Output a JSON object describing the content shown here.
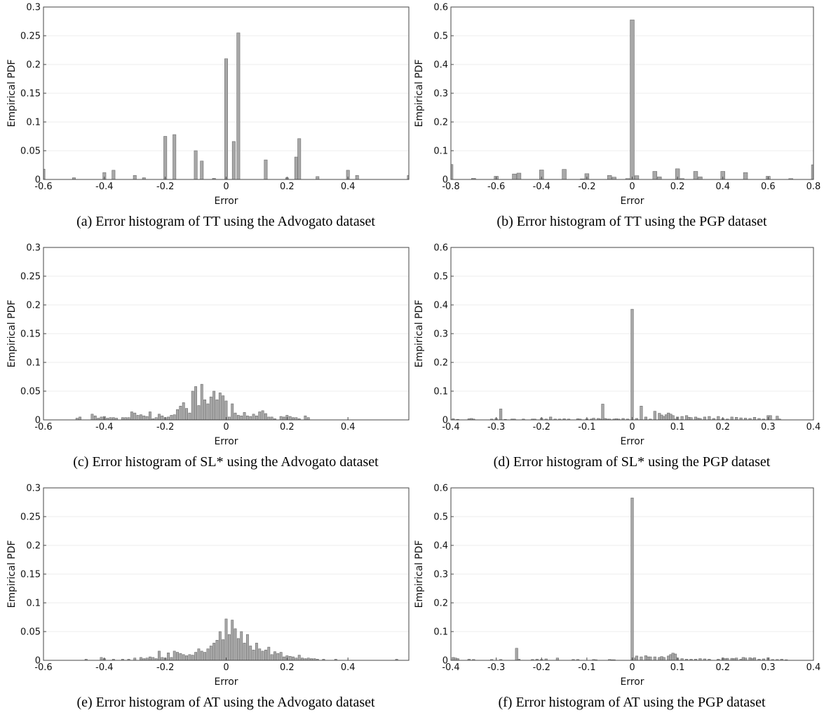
{
  "chart_data": [
    {
      "type": "bar",
      "caption": "(a) Error histogram of TT using the Advogato dataset",
      "xlabel": "Error",
      "ylabel": "Empirical PDF",
      "xlim": [
        -0.6,
        0.6
      ],
      "ylim": [
        0,
        0.3
      ],
      "xticks": [
        -0.6,
        -0.4,
        -0.2,
        0,
        0.2,
        0.4
      ],
      "yticks": [
        0,
        0.05,
        0.1,
        0.15,
        0.2,
        0.25,
        0.3
      ],
      "xtick_labels": [
        "-0.6",
        "-0.4",
        "-0.2",
        "0",
        "0.2",
        "0.4"
      ],
      "ytick_labels": [
        "0",
        "0.05",
        "0.1",
        "0.15",
        "0.2",
        "0.25",
        "0.3"
      ],
      "grid": true,
      "bar_width": 0.01,
      "x": [
        -0.6,
        -0.5,
        -0.4,
        -0.37,
        -0.3,
        -0.27,
        -0.2,
        -0.17,
        -0.1,
        -0.08,
        -0.04,
        0,
        0.025,
        0.04,
        0.13,
        0.2,
        0.23,
        0.24,
        0.3,
        0.4,
        0.43,
        0.6
      ],
      "values": [
        0.018,
        0.003,
        0.012,
        0.016,
        0.007,
        0.003,
        0.075,
        0.078,
        0.05,
        0.032,
        0.002,
        0.21,
        0.066,
        0.255,
        0.034,
        0.003,
        0.039,
        0.071,
        0.005,
        0.016,
        0.007,
        0.007
      ]
    },
    {
      "type": "bar",
      "caption": "(b) Error histogram of TT using the PGP dataset",
      "xlabel": "Error",
      "ylabel": "Empirical PDF",
      "xlim": [
        -0.8,
        0.8
      ],
      "ylim": [
        0,
        0.6
      ],
      "xticks": [
        -0.8,
        -0.6,
        -0.4,
        -0.2,
        0,
        0.2,
        0.4,
        0.6,
        0.8
      ],
      "yticks": [
        0,
        0.1,
        0.2,
        0.3,
        0.4,
        0.5,
        0.6
      ],
      "xtick_labels": [
        "-0.8",
        "-0.6",
        "-0.4",
        "-0.2",
        "0",
        "0.2",
        "0.4",
        "0.6",
        "0.8"
      ],
      "ytick_labels": [
        "0",
        "0.1",
        "0.2",
        "0.3",
        "0.4",
        "0.5",
        "0.6"
      ],
      "grid": true,
      "bar_width": 0.018,
      "x": [
        -0.8,
        -0.7,
        -0.6,
        -0.52,
        -0.5,
        -0.4,
        -0.3,
        -0.22,
        -0.2,
        -0.1,
        -0.08,
        -0.02,
        0,
        0.02,
        0.1,
        0.12,
        0.2,
        0.22,
        0.28,
        0.3,
        0.4,
        0.5,
        0.6,
        0.7,
        0.8
      ],
      "values": [
        0.052,
        0.004,
        0.011,
        0.019,
        0.022,
        0.033,
        0.035,
        0.002,
        0.02,
        0.014,
        0.008,
        0.003,
        0.555,
        0.013,
        0.028,
        0.009,
        0.037,
        0.003,
        0.028,
        0.009,
        0.028,
        0.024,
        0.011,
        0.003,
        0.051
      ]
    },
    {
      "type": "bar",
      "caption": "(c) Error histogram of SL* using the Advogato dataset",
      "xlabel": "Error",
      "ylabel": "Empirical PDF",
      "xlim": [
        -0.6,
        0.6
      ],
      "ylim": [
        0,
        0.3
      ],
      "xticks": [
        -0.6,
        -0.4,
        -0.2,
        0,
        0.2,
        0.4
      ],
      "yticks": [
        0,
        0.05,
        0.1,
        0.15,
        0.2,
        0.25,
        0.3
      ],
      "xtick_labels": [
        "-0.6",
        "-0.4",
        "-0.2",
        "0",
        "0.2",
        "0.4"
      ],
      "ytick_labels": [
        "0",
        "0.05",
        "0.1",
        "0.15",
        "0.2",
        "0.25",
        "0.3"
      ],
      "grid": true,
      "bar_width": 0.0075,
      "x": [
        -0.49,
        -0.48,
        -0.44,
        -0.43,
        -0.42,
        -0.41,
        -0.4,
        -0.39,
        -0.38,
        -0.37,
        -0.36,
        -0.34,
        -0.33,
        -0.32,
        -0.31,
        -0.3,
        -0.29,
        -0.28,
        -0.27,
        -0.26,
        -0.25,
        -0.24,
        -0.23,
        -0.22,
        -0.21,
        -0.2,
        -0.19,
        -0.18,
        -0.17,
        -0.16,
        -0.15,
        -0.14,
        -0.13,
        -0.12,
        -0.11,
        -0.1,
        -0.09,
        -0.08,
        -0.07,
        -0.06,
        -0.05,
        -0.04,
        -0.03,
        -0.02,
        -0.01,
        0.0,
        0.01,
        0.02,
        0.03,
        0.04,
        0.05,
        0.06,
        0.07,
        0.08,
        0.09,
        0.1,
        0.11,
        0.12,
        0.13,
        0.14,
        0.15,
        0.16,
        0.18,
        0.19,
        0.2,
        0.21,
        0.22,
        0.23,
        0.24,
        0.26,
        0.27
      ],
      "values": [
        0.003,
        0.005,
        0.01,
        0.007,
        0.003,
        0.005,
        0.006,
        0.003,
        0.004,
        0.004,
        0.003,
        0.004,
        0.004,
        0.004,
        0.014,
        0.012,
        0.008,
        0.009,
        0.007,
        0.006,
        0.014,
        0.002,
        0.004,
        0.01,
        0.007,
        0.004,
        0.005,
        0.008,
        0.009,
        0.018,
        0.024,
        0.03,
        0.02,
        0.012,
        0.05,
        0.058,
        0.025,
        0.062,
        0.035,
        0.028,
        0.04,
        0.05,
        0.035,
        0.047,
        0.042,
        0.033,
        0.005,
        0.028,
        0.012,
        0.008,
        0.007,
        0.013,
        0.007,
        0.006,
        0.01,
        0.007,
        0.014,
        0.016,
        0.011,
        0.005,
        0.005,
        0.002,
        0.006,
        0.005,
        0.008,
        0.006,
        0.004,
        0.004,
        0.002,
        0.007,
        0.004
      ]
    },
    {
      "type": "bar",
      "caption": "(d) Error histogram of SL* using the PGP dataset",
      "xlabel": "Error",
      "ylabel": "Empirical PDF",
      "xlim": [
        -0.4,
        0.4
      ],
      "ylim": [
        0,
        0.6
      ],
      "xticks": [
        -0.4,
        -0.3,
        -0.2,
        -0.1,
        0,
        0.1,
        0.2,
        0.3,
        0.4
      ],
      "yticks": [
        0,
        0.1,
        0.2,
        0.3,
        0.4,
        0.5,
        0.6
      ],
      "xtick_labels": [
        "-0.4",
        "-0.3",
        "-0.2",
        "-0.1",
        "0",
        "0.1",
        "0.2",
        "0.3",
        "0.4"
      ],
      "ytick_labels": [
        "0",
        "0.1",
        "0.2",
        "0.3",
        "0.4",
        "0.5",
        "0.6"
      ],
      "grid": true,
      "bar_width": 0.0055,
      "x": [
        -0.395,
        -0.385,
        -0.36,
        -0.355,
        -0.35,
        -0.31,
        -0.3,
        -0.29,
        -0.28,
        -0.265,
        -0.26,
        -0.24,
        -0.22,
        -0.215,
        -0.2,
        -0.19,
        -0.18,
        -0.17,
        -0.16,
        -0.15,
        -0.14,
        -0.12,
        -0.115,
        -0.1,
        -0.09,
        -0.085,
        -0.075,
        -0.07,
        -0.065,
        -0.06,
        -0.055,
        -0.05,
        -0.04,
        -0.035,
        -0.03,
        -0.02,
        -0.01,
        0.0,
        0.01,
        0.02,
        0.03,
        0.04,
        0.05,
        0.06,
        0.065,
        0.07,
        0.075,
        0.08,
        0.085,
        0.09,
        0.095,
        0.1,
        0.11,
        0.12,
        0.125,
        0.13,
        0.14,
        0.145,
        0.15,
        0.16,
        0.17,
        0.18,
        0.19,
        0.2,
        0.21,
        0.22,
        0.23,
        0.24,
        0.25,
        0.26,
        0.27,
        0.28,
        0.29,
        0.3,
        0.305,
        0.32,
        0.325
      ],
      "values": [
        0.004,
        0.002,
        0.004,
        0.005,
        0.003,
        0.003,
        0.005,
        0.038,
        0.002,
        0.003,
        0.003,
        0.003,
        0.003,
        0.003,
        0.006,
        0.003,
        0.01,
        0.003,
        0.003,
        0.004,
        0.003,
        0.004,
        0.003,
        0.004,
        0.003,
        0.006,
        0.005,
        0.003,
        0.055,
        0.005,
        0.003,
        0.003,
        0.003,
        0.004,
        0.003,
        0.005,
        0.003,
        0.385,
        0.005,
        0.048,
        0.01,
        0.003,
        0.03,
        0.023,
        0.017,
        0.012,
        0.018,
        0.024,
        0.02,
        0.015,
        0.003,
        0.01,
        0.012,
        0.015,
        0.009,
        0.008,
        0.01,
        0.006,
        0.005,
        0.01,
        0.012,
        0.005,
        0.012,
        0.005,
        0.003,
        0.01,
        0.009,
        0.007,
        0.006,
        0.005,
        0.009,
        0.005,
        0.003,
        0.015,
        0.015,
        0.013,
        0.003
      ]
    },
    {
      "type": "bar",
      "caption": "(e) Error histogram of AT using the Advogato dataset",
      "xlabel": "Error",
      "ylabel": "Empirical PDF",
      "xlim": [
        -0.6,
        0.6
      ],
      "ylim": [
        0,
        0.3
      ],
      "xticks": [
        -0.6,
        -0.4,
        -0.2,
        0,
        0.2,
        0.4
      ],
      "yticks": [
        0,
        0.05,
        0.1,
        0.15,
        0.2,
        0.25,
        0.3
      ],
      "xtick_labels": [
        "-0.6",
        "-0.4",
        "-0.2",
        "0",
        "0.2",
        "0.4"
      ],
      "ytick_labels": [
        "0",
        "0.05",
        "0.1",
        "0.15",
        "0.2",
        "0.25",
        "0.3"
      ],
      "grid": true,
      "bar_width": 0.0075,
      "x": [
        -0.46,
        -0.41,
        -0.4,
        -0.37,
        -0.34,
        -0.32,
        -0.3,
        -0.28,
        -0.27,
        -0.26,
        -0.25,
        -0.24,
        -0.23,
        -0.22,
        -0.21,
        -0.2,
        -0.19,
        -0.18,
        -0.17,
        -0.16,
        -0.15,
        -0.14,
        -0.13,
        -0.12,
        -0.11,
        -0.1,
        -0.09,
        -0.08,
        -0.07,
        -0.06,
        -0.05,
        -0.04,
        -0.03,
        -0.02,
        -0.01,
        0.0,
        0.01,
        0.02,
        0.03,
        0.04,
        0.05,
        0.06,
        0.07,
        0.08,
        0.09,
        0.1,
        0.11,
        0.12,
        0.13,
        0.14,
        0.15,
        0.16,
        0.17,
        0.18,
        0.19,
        0.2,
        0.21,
        0.22,
        0.23,
        0.24,
        0.25,
        0.26,
        0.27,
        0.28,
        0.29,
        0.3,
        0.32,
        0.36,
        0.56
      ],
      "values": [
        0.002,
        0.005,
        0.003,
        0.002,
        0.002,
        0.002,
        0.004,
        0.005,
        0.003,
        0.004,
        0.006,
        0.005,
        0.003,
        0.016,
        0.005,
        0.004,
        0.013,
        0.005,
        0.016,
        0.014,
        0.012,
        0.01,
        0.008,
        0.01,
        0.009,
        0.014,
        0.02,
        0.016,
        0.014,
        0.02,
        0.025,
        0.03,
        0.035,
        0.05,
        0.036,
        0.072,
        0.045,
        0.07,
        0.055,
        0.038,
        0.05,
        0.03,
        0.045,
        0.025,
        0.018,
        0.03,
        0.02,
        0.016,
        0.018,
        0.023,
        0.01,
        0.015,
        0.012,
        0.014,
        0.006,
        0.008,
        0.007,
        0.006,
        0.004,
        0.009,
        0.004,
        0.003,
        0.004,
        0.003,
        0.003,
        0.002,
        0.002,
        0.002,
        0.002
      ]
    },
    {
      "type": "bar",
      "caption": "(f) Error histogram of AT using the PGP dataset",
      "xlabel": "Error",
      "ylabel": "Empirical PDF",
      "xlim": [
        -0.4,
        0.4
      ],
      "ylim": [
        0,
        0.6
      ],
      "xticks": [
        -0.4,
        -0.3,
        -0.2,
        -0.1,
        0,
        0.1,
        0.2,
        0.3,
        0.4
      ],
      "yticks": [
        0,
        0.1,
        0.2,
        0.3,
        0.4,
        0.5,
        0.6
      ],
      "xtick_labels": [
        "-0.4",
        "-0.3",
        "-0.2",
        "-0.1",
        "0",
        "0.1",
        "0.2",
        "0.3",
        "0.4"
      ],
      "ytick_labels": [
        "0",
        "0.1",
        "0.2",
        "0.3",
        "0.4",
        "0.5",
        "0.6"
      ],
      "grid": true,
      "bar_width": 0.0055,
      "x": [
        -0.395,
        -0.39,
        -0.385,
        -0.36,
        -0.35,
        -0.31,
        -0.29,
        -0.255,
        -0.25,
        -0.22,
        -0.21,
        -0.2,
        -0.19,
        -0.165,
        -0.13,
        -0.12,
        -0.085,
        -0.08,
        -0.05,
        -0.045,
        -0.04,
        0.0,
        0.005,
        0.01,
        0.02,
        0.03,
        0.035,
        0.04,
        0.05,
        0.06,
        0.065,
        0.07,
        0.08,
        0.085,
        0.09,
        0.095,
        0.1,
        0.11,
        0.12,
        0.13,
        0.14,
        0.15,
        0.16,
        0.17,
        0.19,
        0.2,
        0.205,
        0.21,
        0.22,
        0.225,
        0.23,
        0.24,
        0.245,
        0.25,
        0.26,
        0.265,
        0.27,
        0.28,
        0.29,
        0.3,
        0.31,
        0.32,
        0.33,
        0.34
      ],
      "values": [
        0.01,
        0.008,
        0.006,
        0.004,
        0.003,
        0.003,
        0.003,
        0.042,
        0.004,
        0.003,
        0.004,
        0.003,
        0.005,
        0.008,
        0.003,
        0.003,
        0.003,
        0.002,
        0.003,
        0.002,
        0.002,
        0.565,
        0.008,
        0.015,
        0.012,
        0.016,
        0.012,
        0.012,
        0.012,
        0.01,
        0.013,
        0.01,
        0.015,
        0.02,
        0.025,
        0.022,
        0.008,
        0.006,
        0.004,
        0.004,
        0.004,
        0.006,
        0.005,
        0.004,
        0.004,
        0.008,
        0.006,
        0.007,
        0.007,
        0.006,
        0.008,
        0.004,
        0.01,
        0.008,
        0.009,
        0.006,
        0.009,
        0.004,
        0.005,
        0.009,
        0.003,
        0.003,
        0.004,
        0.002
      ]
    }
  ]
}
